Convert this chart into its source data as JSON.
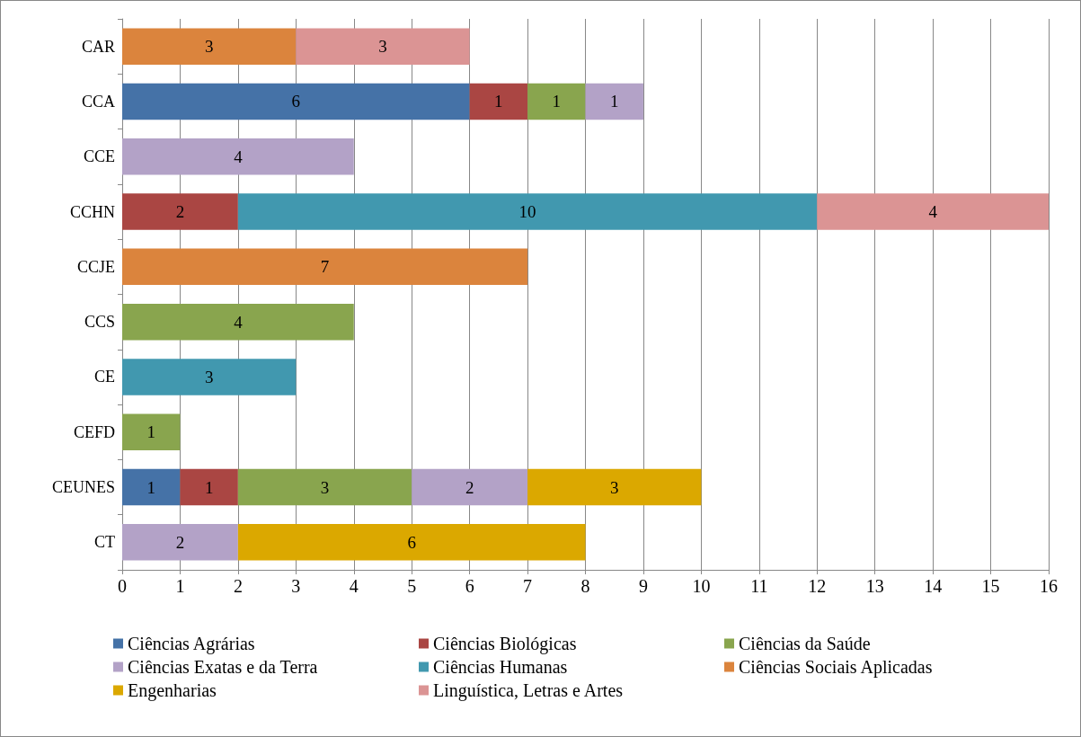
{
  "chart_data": {
    "type": "bar",
    "orientation": "horizontal",
    "stacked": true,
    "data_labels": true,
    "grid": "x",
    "legend": "bottom",
    "categories": [
      "CAR",
      "CCA",
      "CCE",
      "CCHN",
      "CCJE",
      "CCS",
      "CE",
      "CEFD",
      "CEUNES",
      "CT"
    ],
    "xlim": [
      0,
      16
    ],
    "xticks": [
      0,
      1,
      2,
      3,
      4,
      5,
      6,
      7,
      8,
      9,
      10,
      11,
      12,
      13,
      14,
      15,
      16
    ],
    "series": [
      {
        "name": "Ciências Agrárias",
        "color": "#4572a7",
        "values": [
          null,
          6,
          null,
          null,
          null,
          null,
          null,
          null,
          1,
          null
        ]
      },
      {
        "name": "Ciências Biológicas",
        "color": "#aa4643",
        "values": [
          null,
          1,
          null,
          2,
          null,
          null,
          null,
          null,
          1,
          null
        ]
      },
      {
        "name": "Ciências da Saúde",
        "color": "#89a54e",
        "values": [
          null,
          1,
          null,
          null,
          null,
          4,
          null,
          1,
          3,
          null
        ]
      },
      {
        "name": "Ciências Exatas e da Terra",
        "color": "#b3a2c7",
        "values": [
          null,
          1,
          4,
          null,
          null,
          null,
          null,
          null,
          2,
          2
        ]
      },
      {
        "name": "Ciências Humanas",
        "color": "#4198af",
        "values": [
          null,
          null,
          null,
          10,
          null,
          null,
          3,
          null,
          null,
          null
        ]
      },
      {
        "name": "Ciências Sociais Aplicadas",
        "color": "#db843d",
        "values": [
          3,
          null,
          null,
          null,
          7,
          null,
          null,
          null,
          null,
          null
        ]
      },
      {
        "name": "Engenharias",
        "color": "#dba800",
        "values": [
          null,
          null,
          null,
          null,
          null,
          null,
          null,
          null,
          3,
          6
        ]
      },
      {
        "name": "Linguística, Letras e Artes",
        "color": "#db9494",
        "values": [
          3,
          null,
          null,
          4,
          null,
          null,
          null,
          null,
          null,
          null
        ]
      }
    ]
  }
}
